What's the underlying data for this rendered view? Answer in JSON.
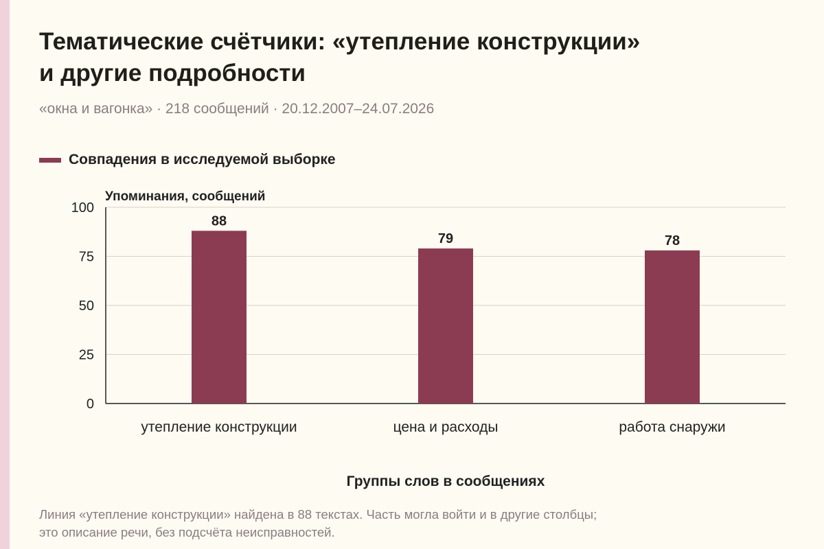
{
  "header": {
    "title_line1": "Тематические счётчики: «утепление конструкции»",
    "title_line2": "и другие подробности",
    "subtitle": "«окна и вагонка» · 218 сообщений · 20.12.2007–24.07.2026"
  },
  "colors": {
    "bar": "#8b3c52",
    "grid": "#d6d2c8",
    "axis": "#222222"
  },
  "chart_data": {
    "type": "bar",
    "categories": [
      "утепление конструкции",
      "цена и расходы",
      "работа снаружи"
    ],
    "series": [
      {
        "name": "Совпадения в исследуемой выборке",
        "values": [
          88,
          79,
          78
        ]
      }
    ],
    "ylabel": "Упоминания, сообщений",
    "xlabel": "Группы слов в сообщениях",
    "ylim": [
      0,
      100
    ],
    "yticks": [
      0,
      25,
      50,
      75,
      100
    ],
    "data_labels": true,
    "grid": true,
    "legend": "top-left"
  },
  "footer": {
    "note_line1": "Линия «утепление конструкции» найдена в 88 текстах. Часть могла войти и в другие столбцы;",
    "note_line2": "это описание речи, без подсчёта неисправностей."
  }
}
